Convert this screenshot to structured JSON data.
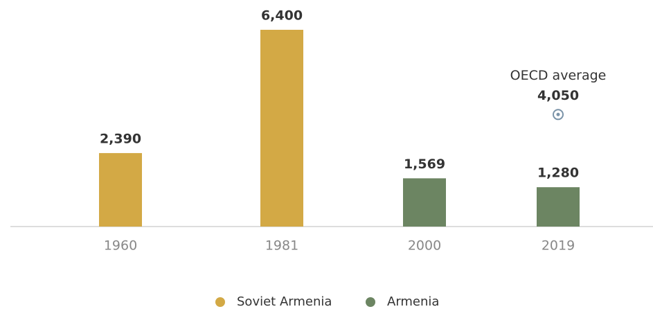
{
  "chart_data": {
    "type": "bar",
    "categories": [
      "1960",
      "1981",
      "2000",
      "2019"
    ],
    "series": [
      {
        "name": "Soviet Armenia",
        "color": "#d3a945",
        "values": [
          2390,
          6400,
          null,
          null
        ],
        "value_labels": [
          "2,390",
          "6,400",
          null,
          null
        ]
      },
      {
        "name": "Armenia",
        "color": "#6c8562",
        "values": [
          null,
          null,
          1569,
          1280
        ],
        "value_labels": [
          null,
          null,
          "1,569",
          "1,280"
        ]
      }
    ],
    "annotation": {
      "label": "OECD average",
      "value": 4050,
      "value_label": "4,050",
      "color": "#7a93a8"
    },
    "legend": "bottom"
  }
}
